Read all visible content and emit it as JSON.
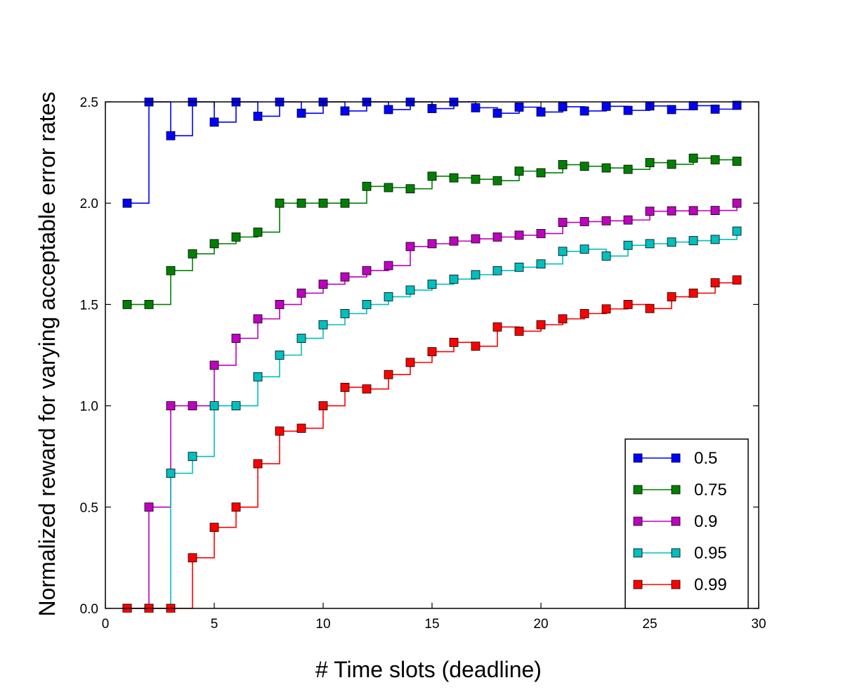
{
  "chart_data": {
    "type": "line",
    "title": "",
    "xlabel": "# Time slots (deadline)",
    "ylabel": "Normalized reward for varying acceptable error rates",
    "xlim": [
      0,
      30
    ],
    "ylim": [
      0.0,
      2.5
    ],
    "xticks": [
      0,
      5,
      10,
      15,
      20,
      25,
      30
    ],
    "yticks": [
      0.0,
      0.5,
      1.0,
      1.5,
      2.0,
      2.5
    ],
    "ytick_labels": [
      "0.0",
      "0.5",
      "1.0",
      "1.5",
      "2.0",
      "2.5"
    ],
    "grid": false,
    "legend_position": "bottom-right",
    "line_style": "step",
    "marker": "square",
    "x": [
      1,
      2,
      3,
      4,
      5,
      6,
      7,
      8,
      9,
      10,
      11,
      12,
      13,
      14,
      15,
      16,
      17,
      18,
      19,
      20,
      21,
      22,
      23,
      24,
      25,
      26,
      27,
      28,
      29
    ],
    "series": [
      {
        "name": "0.5",
        "color": "#0000ff",
        "values": [
          2.0,
          2.5,
          2.333,
          2.5,
          2.4,
          2.5,
          2.429,
          2.5,
          2.444,
          2.5,
          2.455,
          2.5,
          2.462,
          2.5,
          2.467,
          2.5,
          2.471,
          2.444,
          2.474,
          2.45,
          2.476,
          2.455,
          2.478,
          2.458,
          2.48,
          2.462,
          2.481,
          2.464,
          2.483
        ]
      },
      {
        "name": "0.75",
        "color": "#008000",
        "values": [
          1.5,
          1.5,
          1.667,
          1.75,
          1.8,
          1.833,
          1.857,
          2.0,
          2.0,
          2.0,
          2.0,
          2.083,
          2.077,
          2.071,
          2.133,
          2.125,
          2.118,
          2.111,
          2.158,
          2.15,
          2.19,
          2.182,
          2.174,
          2.167,
          2.2,
          2.192,
          2.222,
          2.214,
          2.207
        ]
      },
      {
        "name": "0.9",
        "color": "#bf00bf",
        "values": [
          0.0,
          0.5,
          1.0,
          1.0,
          1.2,
          1.333,
          1.429,
          1.5,
          1.556,
          1.6,
          1.636,
          1.667,
          1.692,
          1.786,
          1.8,
          1.813,
          1.824,
          1.833,
          1.842,
          1.85,
          1.905,
          1.909,
          1.913,
          1.917,
          1.96,
          1.962,
          1.963,
          1.964,
          2.0
        ]
      },
      {
        "name": "0.95",
        "color": "#00bfbf",
        "values": [
          0.0,
          0.0,
          0.667,
          0.75,
          1.0,
          1.0,
          1.143,
          1.25,
          1.333,
          1.4,
          1.455,
          1.5,
          1.538,
          1.571,
          1.6,
          1.625,
          1.647,
          1.667,
          1.684,
          1.7,
          1.762,
          1.773,
          1.739,
          1.792,
          1.8,
          1.808,
          1.815,
          1.821,
          1.862
        ]
      },
      {
        "name": "0.99",
        "color": "#ff0000",
        "values": [
          0.0,
          0.0,
          0.0,
          0.25,
          0.4,
          0.5,
          0.714,
          0.875,
          0.889,
          1.0,
          1.091,
          1.083,
          1.154,
          1.214,
          1.267,
          1.313,
          1.294,
          1.389,
          1.368,
          1.4,
          1.429,
          1.455,
          1.478,
          1.5,
          1.48,
          1.538,
          1.556,
          1.607,
          1.621
        ]
      }
    ]
  }
}
